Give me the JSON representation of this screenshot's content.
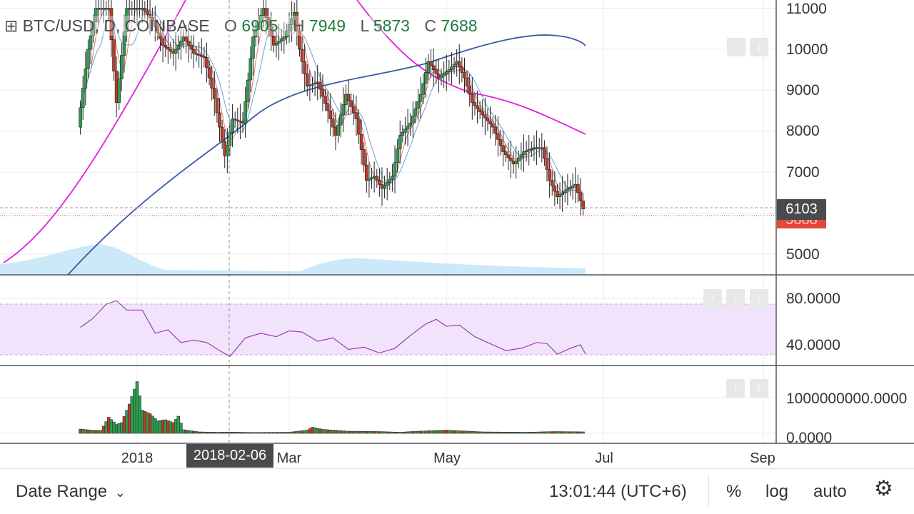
{
  "symbol": {
    "icon": "plus-square-icon",
    "title": "BTC/USD, D, COINBASE",
    "ohlc": [
      {
        "key": "O",
        "value": "6905"
      },
      {
        "key": "H",
        "value": "7949"
      },
      {
        "key": "L",
        "value": "5873"
      },
      {
        "key": "C",
        "value": "7688"
      }
    ]
  },
  "price_axis": {
    "labels": [
      "11000",
      "10000",
      "9000",
      "8000",
      "7000",
      "5000"
    ],
    "current_price": "6103",
    "hidden_tag": "5888"
  },
  "rsi_axis": {
    "labels": [
      "80.0000",
      "40.0000"
    ]
  },
  "volume_axis": {
    "labels": [
      "1000000000.0000",
      "0.0000"
    ]
  },
  "time_axis": {
    "labels": [
      "2018",
      "Mar",
      "May",
      "Jul",
      "Sep"
    ],
    "crosshair_date": "2018-02-06"
  },
  "bottom_bar": {
    "date_range_label": "Date Range",
    "clock": "13:01:44 (UTC+6)",
    "percent_label": "%",
    "log_label": "log",
    "auto_label": "auto",
    "settings_icon": "gear-icon"
  },
  "colors": {
    "up": "#2e9c4f",
    "down": "#c0392b",
    "ma_blue_dark": "#3b5aa3",
    "ma_magenta": "#e020e0",
    "rsi_line": "#9b3fb5",
    "rsi_band": "#f1e3fb",
    "last_price_tag": "#4a4a4a",
    "low_price_tag": "#e0493a"
  },
  "chart_data": [
    {
      "type": "line",
      "name": "price",
      "y_axis_ticks": [
        5000,
        7000,
        8000,
        9000,
        10000,
        11000
      ],
      "ylim": [
        4500,
        11200
      ],
      "x_ticks": [
        "2018",
        "Mar",
        "May",
        "Jul",
        "Sep"
      ],
      "points": [
        [
          "2017-12-10",
          8100
        ],
        [
          "2017-12-14",
          10000
        ],
        [
          "2017-12-17",
          11000
        ],
        [
          "2017-12-22",
          11000
        ],
        [
          "2017-12-25",
          8700
        ],
        [
          "2017-12-29",
          11000
        ],
        [
          "2018-01-04",
          11000
        ],
        [
          "2018-01-08",
          10700
        ],
        [
          "2018-01-12",
          10100
        ],
        [
          "2018-01-16",
          9900
        ],
        [
          "2018-01-20",
          10300
        ],
        [
          "2018-01-24",
          9900
        ],
        [
          "2018-01-28",
          9800
        ],
        [
          "2018-02-01",
          8800
        ],
        [
          "2018-02-05",
          7400
        ],
        [
          "2018-02-06",
          7650
        ],
        [
          "2018-02-08",
          8300
        ],
        [
          "2018-02-12",
          8200
        ],
        [
          "2018-02-16",
          10300
        ],
        [
          "2018-02-20",
          11000
        ],
        [
          "2018-02-24",
          10100
        ],
        [
          "2018-02-28",
          10300
        ],
        [
          "2018-03-04",
          10900
        ],
        [
          "2018-03-06",
          10000
        ],
        [
          "2018-03-09",
          9100
        ],
        [
          "2018-03-13",
          9200
        ],
        [
          "2018-03-17",
          8500
        ],
        [
          "2018-03-20",
          7900
        ],
        [
          "2018-03-24",
          8900
        ],
        [
          "2018-03-28",
          8300
        ],
        [
          "2018-04-01",
          6800
        ],
        [
          "2018-04-04",
          6900
        ],
        [
          "2018-04-07",
          6600
        ],
        [
          "2018-04-11",
          6900
        ],
        [
          "2018-04-14",
          7900
        ],
        [
          "2018-04-18",
          8200
        ],
        [
          "2018-04-22",
          8900
        ],
        [
          "2018-04-25",
          9700
        ],
        [
          "2018-04-29",
          9300
        ],
        [
          "2018-05-03",
          9500
        ],
        [
          "2018-05-06",
          9700
        ],
        [
          "2018-05-09",
          9300
        ],
        [
          "2018-05-12",
          8700
        ],
        [
          "2018-05-16",
          8400
        ],
        [
          "2018-05-20",
          8100
        ],
        [
          "2018-05-24",
          7500
        ],
        [
          "2018-05-28",
          7200
        ],
        [
          "2018-06-01",
          7500
        ],
        [
          "2018-06-05",
          7600
        ],
        [
          "2018-06-08",
          7600
        ],
        [
          "2018-06-11",
          6800
        ],
        [
          "2018-06-14",
          6400
        ],
        [
          "2018-06-18",
          6600
        ],
        [
          "2018-06-21",
          6700
        ],
        [
          "2018-06-24",
          6103
        ]
      ]
    },
    {
      "type": "line",
      "name": "RSI",
      "y_axis_ticks": [
        40,
        80
      ],
      "ylim": [
        25,
        95
      ],
      "band": [
        30,
        70
      ],
      "points": [
        [
          "2017-12-10",
          55
        ],
        [
          "2017-12-15",
          63
        ],
        [
          "2017-12-20",
          75
        ],
        [
          "2017-12-24",
          78
        ],
        [
          "2017-12-28",
          70
        ],
        [
          "2018-01-03",
          70
        ],
        [
          "2018-01-08",
          50
        ],
        [
          "2018-01-13",
          53
        ],
        [
          "2018-01-18",
          42
        ],
        [
          "2018-01-23",
          44
        ],
        [
          "2018-01-28",
          42
        ],
        [
          "2018-02-02",
          35
        ],
        [
          "2018-02-06",
          30
        ],
        [
          "2018-02-12",
          46
        ],
        [
          "2018-02-18",
          50
        ],
        [
          "2018-02-24",
          47
        ],
        [
          "2018-03-01",
          52
        ],
        [
          "2018-03-06",
          51
        ],
        [
          "2018-03-12",
          43
        ],
        [
          "2018-03-18",
          46
        ],
        [
          "2018-03-24",
          36
        ],
        [
          "2018-03-30",
          38
        ],
        [
          "2018-04-05",
          33
        ],
        [
          "2018-04-11",
          37
        ],
        [
          "2018-04-17",
          48
        ],
        [
          "2018-04-23",
          58
        ],
        [
          "2018-04-27",
          62
        ],
        [
          "2018-05-01",
          56
        ],
        [
          "2018-05-06",
          57
        ],
        [
          "2018-05-12",
          47
        ],
        [
          "2018-05-18",
          41
        ],
        [
          "2018-05-24",
          35
        ],
        [
          "2018-05-30",
          37
        ],
        [
          "2018-06-05",
          42
        ],
        [
          "2018-06-09",
          41
        ],
        [
          "2018-06-13",
          32
        ],
        [
          "2018-06-18",
          37
        ],
        [
          "2018-06-22",
          40
        ],
        [
          "2018-06-24",
          32
        ]
      ]
    },
    {
      "type": "bar",
      "name": "volume",
      "y_axis_ticks": [
        0,
        1000000000
      ],
      "ylim": [
        0,
        1700000000
      ],
      "points": [
        [
          "2017-12-10",
          120000000
        ],
        [
          "2017-12-14",
          90000000
        ],
        [
          "2017-12-18",
          80000000
        ],
        [
          "2017-12-21",
          450000000
        ],
        [
          "2017-12-24",
          250000000
        ],
        [
          "2017-12-26",
          300000000
        ],
        [
          "2017-12-29",
          820000000
        ],
        [
          "2018-01-01",
          1450000000
        ],
        [
          "2018-01-03",
          650000000
        ],
        [
          "2018-01-06",
          550000000
        ],
        [
          "2018-01-09",
          350000000
        ],
        [
          "2018-01-12",
          380000000
        ],
        [
          "2018-01-15",
          300000000
        ],
        [
          "2018-01-17",
          480000000
        ],
        [
          "2018-01-19",
          100000000
        ],
        [
          "2018-01-25",
          40000000
        ],
        [
          "2018-02-01",
          30000000
        ],
        [
          "2018-02-06",
          35000000
        ],
        [
          "2018-02-15",
          25000000
        ],
        [
          "2018-03-01",
          30000000
        ],
        [
          "2018-03-08",
          90000000
        ],
        [
          "2018-03-10",
          170000000
        ],
        [
          "2018-03-14",
          110000000
        ],
        [
          "2018-03-24",
          60000000
        ],
        [
          "2018-04-05",
          50000000
        ],
        [
          "2018-04-13",
          30000000
        ],
        [
          "2018-04-20",
          60000000
        ],
        [
          "2018-05-01",
          90000000
        ],
        [
          "2018-05-15",
          40000000
        ],
        [
          "2018-06-01",
          30000000
        ],
        [
          "2018-06-12",
          50000000
        ],
        [
          "2018-06-24",
          40000000
        ]
      ]
    }
  ]
}
